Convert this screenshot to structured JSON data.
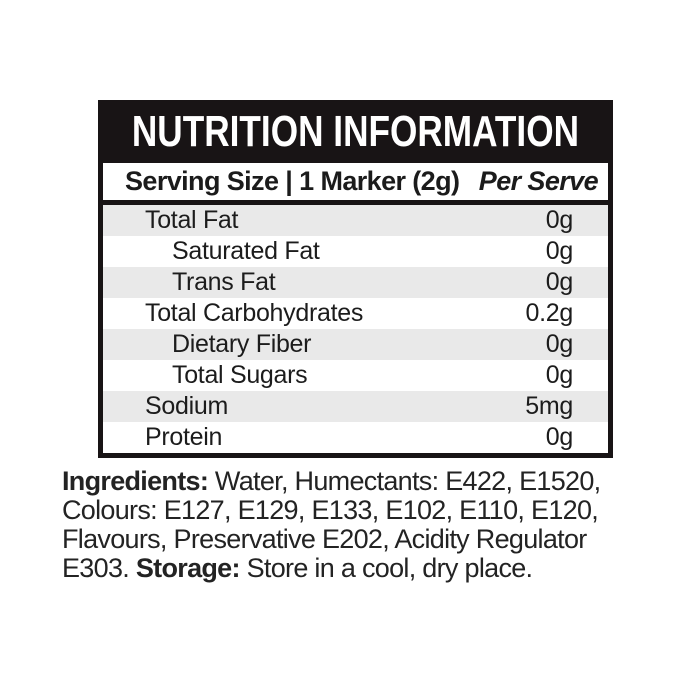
{
  "panel": {
    "title": "NUTRITION INFORMATION",
    "serving": {
      "left": "Serving Size | 1 Marker (2g)",
      "right": "Per Serve"
    },
    "rows": [
      {
        "label": "Total Fat",
        "value": "0g",
        "indent": 1
      },
      {
        "label": "Saturated Fat",
        "value": "0g",
        "indent": 2
      },
      {
        "label": "Trans Fat",
        "value": "0g",
        "indent": 2
      },
      {
        "label": "Total Carbohydrates",
        "value": "0.2g",
        "indent": 1
      },
      {
        "label": "Dietary Fiber",
        "value": "0g",
        "indent": 2
      },
      {
        "label": "Total Sugars",
        "value": "0g",
        "indent": 2
      },
      {
        "label": "Sodium",
        "value": "5mg",
        "indent": 1
      },
      {
        "label": "Protein",
        "value": "0g",
        "indent": 1
      }
    ],
    "colors": {
      "panel_black": "#181415",
      "row_alt_gray": "#e9e9e9",
      "text": "#1c1c1c",
      "background": "#ffffff"
    }
  },
  "ingredients": {
    "label": "Ingredients:",
    "line1_rest": " Water, Humectants: E422, E1520,",
    "line2": "Colours: E127, E129, E133, E102, E110, E120,",
    "line3": "Flavours, Preservative E202, Acidity Regulator",
    "line4_pre": "E303. ",
    "storage_label": "Storage:",
    "line4_rest": " Store in a cool, dry place."
  }
}
